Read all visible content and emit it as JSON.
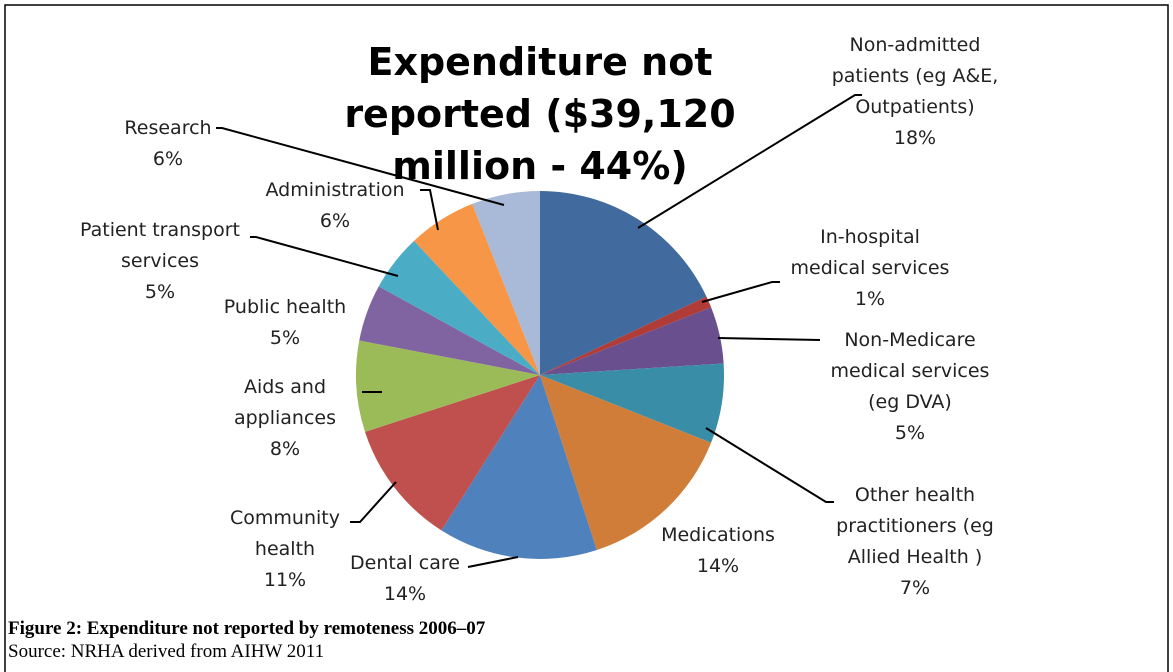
{
  "chart_data": {
    "type": "pie",
    "title": "Expenditure not reported ($39,120 million - 44%)",
    "categories": [
      "Non-admitted patients (eg A&E, Outpatients)",
      "In-hospital medical services",
      "Non-Medicare medical services (eg DVA)",
      "Other health practitioners (eg Allied Health )",
      "Medications",
      "Dental care",
      "Community health",
      "Aids and appliances",
      "Public health",
      "Patient transport services",
      "Administration",
      "Research"
    ],
    "values": [
      18,
      1,
      5,
      7,
      14,
      14,
      11,
      8,
      5,
      5,
      6,
      6
    ],
    "value_labels": [
      "18%",
      "1%",
      "5%",
      "7%",
      "14%",
      "14%",
      "11%",
      "8%",
      "5%",
      "5%",
      "6%",
      "6%"
    ],
    "colors": [
      "#416b9f",
      "#b03c38",
      "#6a4f8f",
      "#3a8da6",
      "#d07d39",
      "#4f81bd",
      "#c0504d",
      "#9bbb59",
      "#8064a2",
      "#4bacc6",
      "#f79646",
      "#a9b9d8"
    ]
  },
  "caption": {
    "figure": "Figure 2: Expenditure not reported by remoteness 2006–07",
    "source": "Source: NRHA derived from AIHW 2011"
  }
}
